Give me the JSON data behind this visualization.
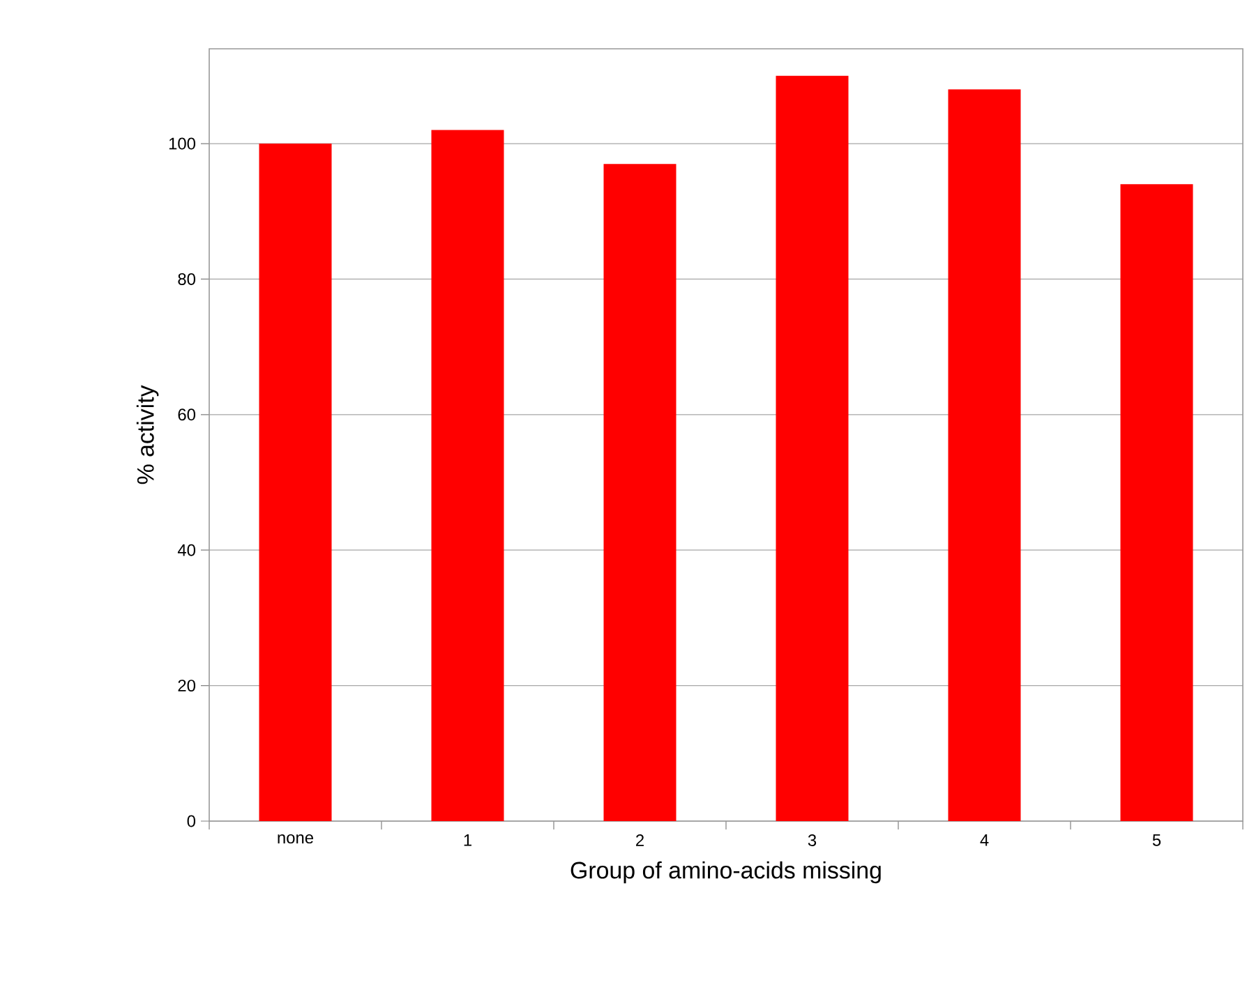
{
  "chart_data": {
    "type": "bar",
    "xlabel": "Group of amino-acids missing",
    "ylabel": "% activity",
    "categories": [
      "none",
      "1",
      "2",
      "3",
      "4",
      "5"
    ],
    "values": [
      100,
      102,
      97,
      110,
      108,
      94
    ],
    "color": "#ff0000",
    "ylim": [
      0,
      114
    ],
    "yticks": [
      0,
      20,
      40,
      60,
      80,
      100
    ],
    "grid": "y"
  }
}
